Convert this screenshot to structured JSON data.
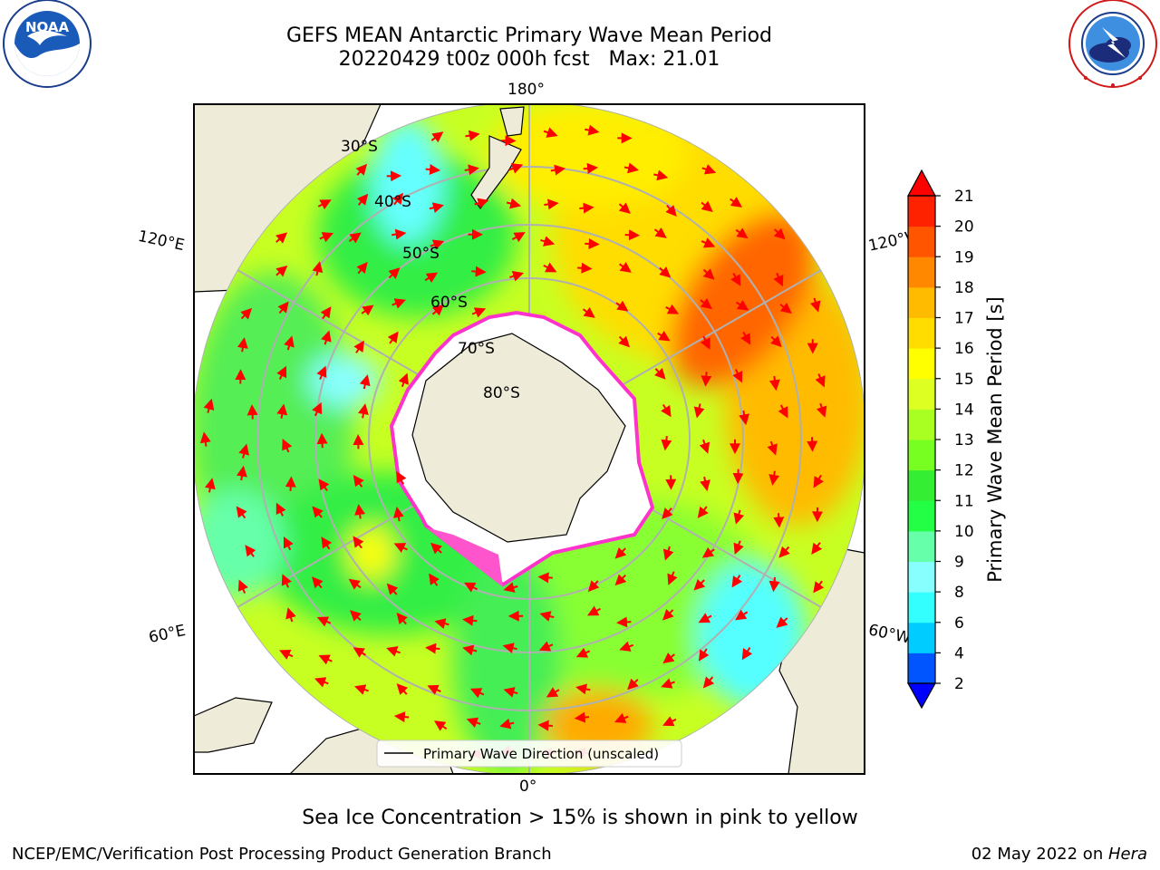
{
  "header": {
    "title_line1": "GEFS MEAN Antarctic Primary Wave Mean Period",
    "title_line2": "20220429 t00z 000h fcst   Max: 21.01"
  },
  "logos": {
    "left": "NOAA",
    "left_ring_text": "NATIONAL OCEANIC AND ATMOSPHERIC ADMINISTRATION · U.S. DEPARTMENT OF COMMERCE",
    "right_ring_text": "NATIONAL WEATHER SERVICE"
  },
  "map": {
    "longitude_labels": {
      "top": "180°",
      "bottom": "0°",
      "left_upper": "120°E",
      "left_lower": "60°E",
      "right_upper": "120°W",
      "right_lower": "60°W"
    },
    "latitude_labels": [
      "30°S",
      "40°S",
      "50°S",
      "60°S",
      "70°S",
      "80°S"
    ],
    "legend_label": "Primary Wave Direction (unscaled)",
    "colors": {
      "land": "#efebd9",
      "ice": "#ffffff",
      "ice_edge": "#ff33cc",
      "arrow": "#ff0000",
      "grid": "#b0b0b0"
    }
  },
  "colorbar": {
    "label": "Primary Wave Mean Period [s]",
    "ticks": [
      "2",
      "4",
      "6",
      "8",
      "9",
      "10",
      "11",
      "12",
      "13",
      "14",
      "15",
      "16",
      "17",
      "18",
      "19",
      "20",
      "21"
    ],
    "colors": [
      "#0055ff",
      "#00ccff",
      "#33ffff",
      "#88ffff",
      "#66ffaa",
      "#22ff44",
      "#33ee33",
      "#77ff22",
      "#aaff22",
      "#ddff22",
      "#ffff00",
      "#ffdd00",
      "#ffbb00",
      "#ff8800",
      "#ff5500",
      "#ff2200"
    ],
    "under_color": "#0000ff",
    "over_color": "#ff0000"
  },
  "footer": {
    "note": "Sea Ice Concentration > 15% is shown in pink to yellow",
    "left": "NCEP/EMC/Verification Post Processing Product Generation Branch",
    "date": "02 May 2022 on ",
    "host": "Hera"
  }
}
